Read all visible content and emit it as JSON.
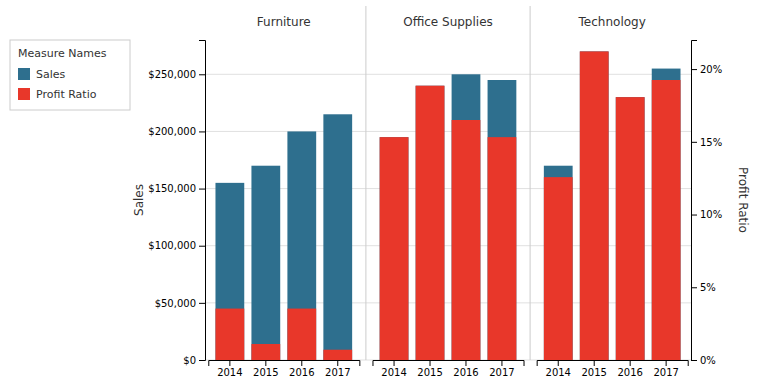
{
  "chart_data": {
    "type": "bar",
    "groups": [
      "Furniture",
      "Office Supplies",
      "Technology"
    ],
    "categories": [
      "2014",
      "2015",
      "2016",
      "2017",
      "2014",
      "2015",
      "2016",
      "2017",
      "2014",
      "2015",
      "2016",
      "2017"
    ],
    "series": [
      {
        "name": "Sales",
        "color": "#2e6f8e",
        "values": [
          155000,
          170000,
          200000,
          215000,
          195000,
          240000,
          250000,
          245000,
          170000,
          270000,
          230000,
          255000
        ]
      },
      {
        "name": "Profit Ratio",
        "color": "#e8372a",
        "values": [
          45000,
          14000,
          45000,
          9000,
          195000,
          240000,
          210000,
          195000,
          160000,
          270000,
          230000,
          245000
        ]
      }
    ],
    "ylabel": "Sales",
    "ylim": [
      0,
      280000
    ],
    "yticks": [
      {
        "value": 0,
        "label": "$0"
      },
      {
        "value": 50000,
        "label": "$50,000"
      },
      {
        "value": 100000,
        "label": "$100,000"
      },
      {
        "value": 150000,
        "label": "$150,000"
      },
      {
        "value": 200000,
        "label": "$200,000"
      },
      {
        "value": 250000,
        "label": "$250,000"
      }
    ],
    "y2label": "Profit Ratio",
    "y2lim": [
      0,
      0.22
    ],
    "y2ticks": [
      {
        "value": 0.0,
        "label": "0%"
      },
      {
        "value": 0.05,
        "label": "5%"
      },
      {
        "value": 0.1,
        "label": "10%"
      },
      {
        "value": 0.15,
        "label": "15%"
      },
      {
        "value": 0.2,
        "label": "20%"
      }
    ],
    "grid": true,
    "legend": "left",
    "legend_title": "Measure Names"
  }
}
